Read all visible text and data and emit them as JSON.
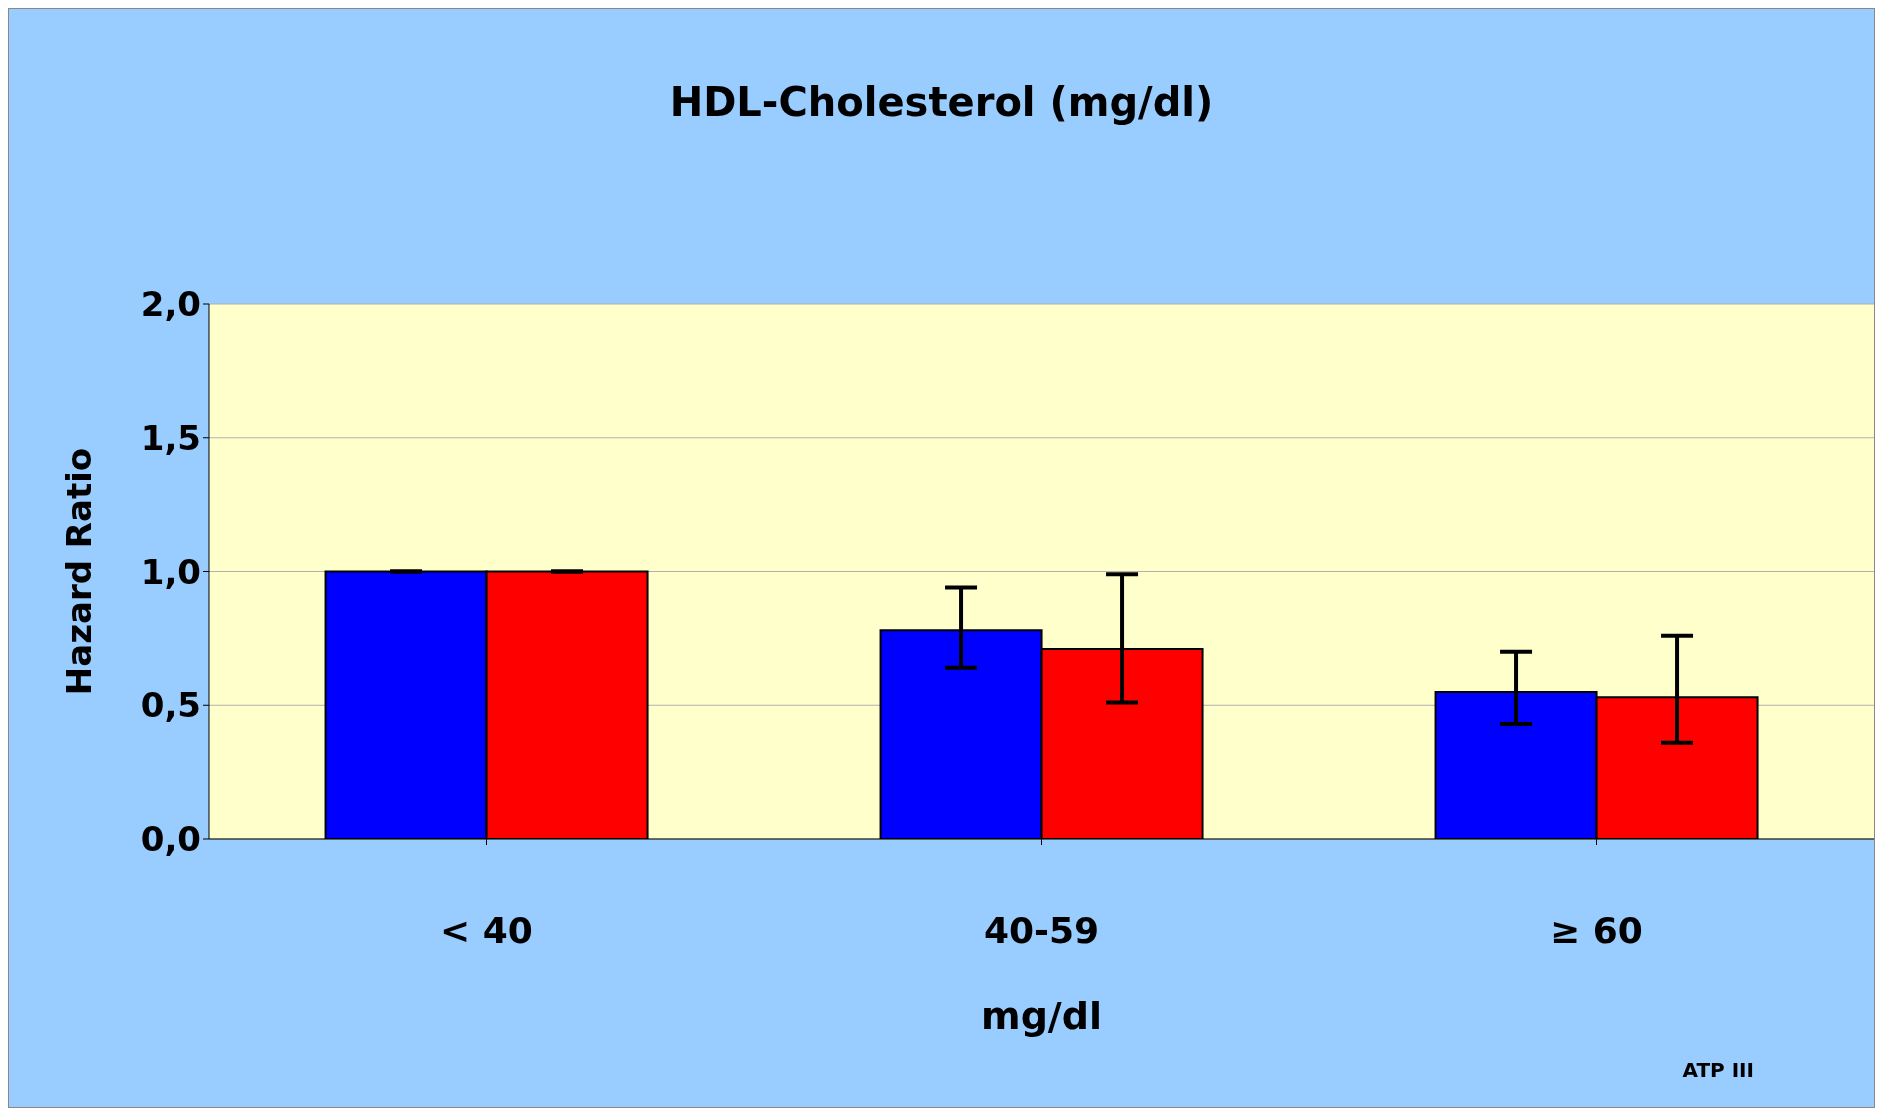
{
  "chart_data": {
    "type": "bar",
    "title": "HDL-Cholesterol (mg/dl)",
    "xlabel": "mg/dl",
    "ylabel": "Hazard Ratio",
    "categories": [
      "< 40",
      "40-59",
      "≥ 60"
    ],
    "series": [
      {
        "color": "#0000ff",
        "values": [
          1.0,
          0.78,
          0.55
        ],
        "errors": [
          [
            1.0,
            1.0
          ],
          [
            0.64,
            0.94
          ],
          [
            0.43,
            0.7
          ]
        ]
      },
      {
        "color": "#ff0000",
        "values": [
          1.0,
          0.71,
          0.53
        ],
        "errors": [
          [
            1.0,
            1.0
          ],
          [
            0.51,
            0.99
          ],
          [
            0.36,
            0.76
          ]
        ]
      }
    ],
    "ylim": [
      0,
      2
    ],
    "yticks": [
      {
        "value": 0,
        "label": "0,0"
      },
      {
        "value": 0.5,
        "label": "0,5"
      },
      {
        "value": 1,
        "label": "1,0"
      },
      {
        "value": 1.5,
        "label": "1,5"
      },
      {
        "value": 2,
        "label": "2,0"
      }
    ],
    "grid": "y",
    "legend": false,
    "annotations": [
      "ATP III"
    ]
  }
}
